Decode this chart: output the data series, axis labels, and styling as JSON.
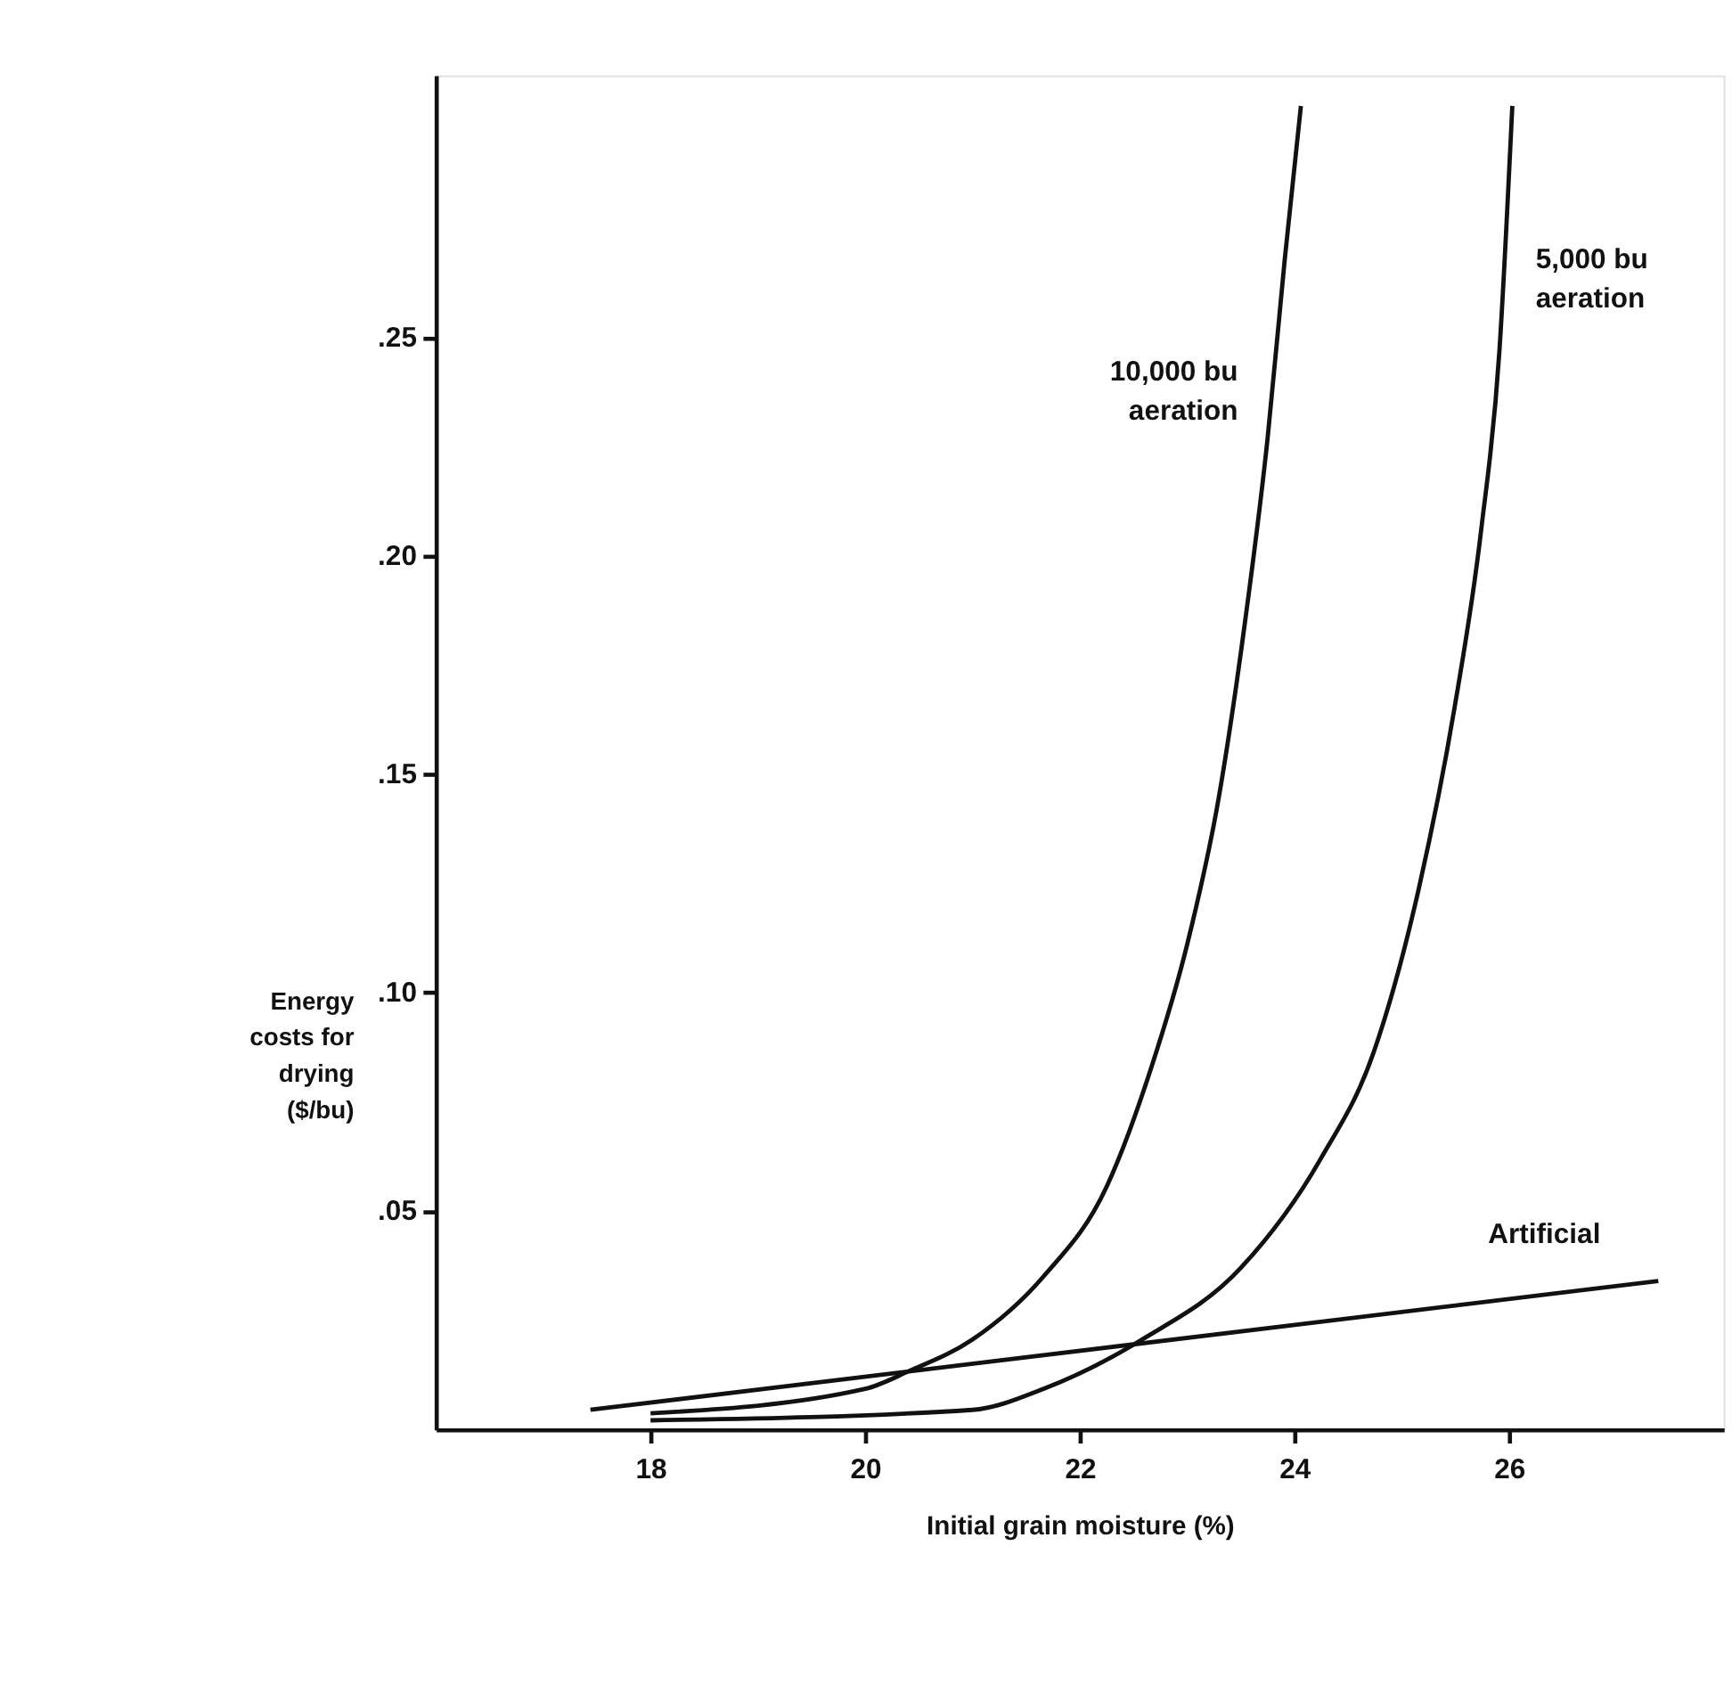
{
  "chart_data": {
    "type": "line",
    "xlabel": "Initial grain moisture (%)",
    "ylabel": "Energy\ncosts for\ndrying\n($/bu)",
    "xlim": [
      16,
      28
    ],
    "xticks": [
      18,
      20,
      22,
      24,
      26
    ],
    "ylim": [
      0,
      0.31
    ],
    "yticks": [
      {
        "value": 0.05,
        "label": ".05"
      },
      {
        "value": 0.1,
        "label": ".10"
      },
      {
        "value": 0.15,
        "label": ".15"
      },
      {
        "value": 0.2,
        "label": ".20"
      },
      {
        "value": 0.25,
        "label": ".25"
      }
    ],
    "grid": false,
    "marker": "none",
    "line_style": "solid",
    "series": [
      {
        "name": "10,000 bu\naeration",
        "color": "#111111",
        "x": [
          18.0,
          20.0,
          20.41,
          21.0,
          21.66,
          22.25,
          22.66,
          23.0,
          23.29,
          23.54,
          23.75,
          23.91,
          24.06
        ],
        "values": [
          0.0037,
          0.0093,
          0.0134,
          0.0206,
          0.035,
          0.0556,
          0.0824,
          0.111,
          0.144,
          0.185,
          0.227,
          0.268,
          0.303
        ]
      },
      {
        "name": "5,000 bu\naeration",
        "color": "#111111",
        "x": [
          18.0,
          21.0,
          21.66,
          22.58,
          23.5,
          24.24,
          24.74,
          25.16,
          25.49,
          25.74,
          25.91,
          26.03
        ],
        "values": [
          0.0021,
          0.0045,
          0.0093,
          0.0206,
          0.037,
          0.0618,
          0.0865,
          0.124,
          0.165,
          0.206,
          0.247,
          0.303
        ]
      },
      {
        "name": "Artificial",
        "color": "#111111",
        "x": [
          17.44,
          27.39
        ],
        "values": [
          0.0045,
          0.034
        ]
      }
    ]
  }
}
